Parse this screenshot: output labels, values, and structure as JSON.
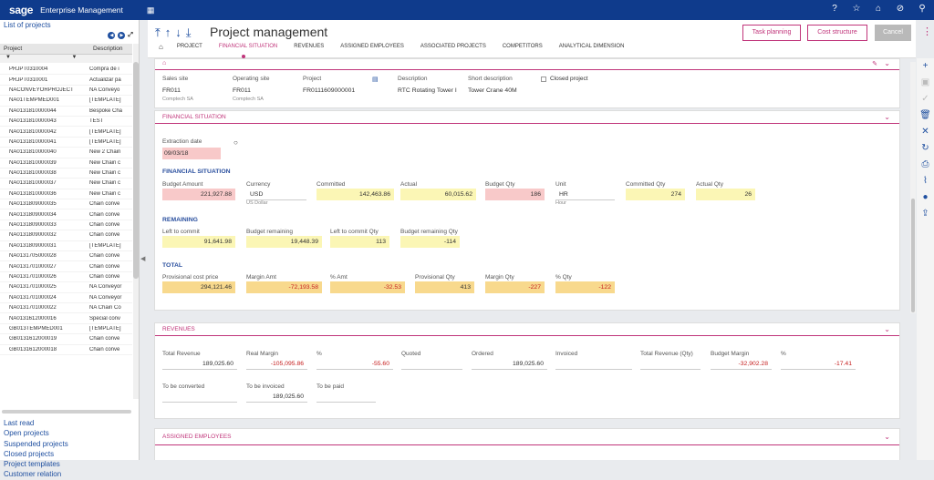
{
  "app": {
    "brand": "sage",
    "name": "Enterprise Management"
  },
  "left_panel": {
    "title": "List of projects",
    "headers": [
      "Project",
      "Description"
    ],
    "rows": [
      [
        "PRJPT0310004",
        "Compra de i"
      ],
      [
        "PRJPT0310001",
        "Actualizar pa"
      ],
      [
        "NACONVEYORPROJECT",
        "NA Conveyo"
      ],
      [
        "NA01TEMPMED001",
        "[TEMPLATE]"
      ],
      [
        "NA0131810000044",
        "Bespoke Cha"
      ],
      [
        "NA0131810000043",
        "TEST"
      ],
      [
        "NA0131810000042",
        "[TEMPLATE]"
      ],
      [
        "NA0131810000041",
        "[TEMPLATE]"
      ],
      [
        "NA0131810000040",
        "New 2 Chain"
      ],
      [
        "NA0131810000039",
        "New Chain c"
      ],
      [
        "NA0131810000038",
        "New Chain c"
      ],
      [
        "NA0131810000037",
        "New Chain c"
      ],
      [
        "NA0131810000036",
        "New Chain c"
      ],
      [
        "NA0131809000035",
        "Chain conve"
      ],
      [
        "NA0131809000034",
        "Chain conve"
      ],
      [
        "NA0131809000033",
        "Chain conve"
      ],
      [
        "NA0131809000032",
        "Chain conve"
      ],
      [
        "NA0131809000031",
        "[TEMPLATE]"
      ],
      [
        "NA0131705000028",
        "Chain conve"
      ],
      [
        "NA0131701000027",
        "Chain conve"
      ],
      [
        "NA0131701000026",
        "Chain conve"
      ],
      [
        "NA0131701000025",
        "NA Conveyor"
      ],
      [
        "NA0131701000024",
        "NA Conveyor"
      ],
      [
        "NA0131701000022",
        "NA Chain Co"
      ],
      [
        "NA0131612000016",
        "Special conv"
      ],
      [
        "GB013TEMPMED001",
        "[TEMPLATE]"
      ],
      [
        "GB0131612000019",
        "Chain conve"
      ],
      [
        "GB0131612000018",
        "Chain conve"
      ]
    ],
    "links": [
      "Last read",
      "Open projects",
      "Suspended projects",
      "Closed projects",
      "Project templates",
      "Customer relation"
    ]
  },
  "header": {
    "title": "Project management",
    "tabs": [
      "PROJECT",
      "FINANCIAL SITUATION",
      "REVENUES",
      "ASSIGNED EMPLOYEES",
      "ASSOCIATED PROJECTS",
      "COMPETITORS",
      "ANALYTICAL DIMENSION"
    ],
    "buttons": {
      "task": "Task planning",
      "cost": "Cost structure",
      "cancel": "Cancel"
    }
  },
  "project": {
    "sales_site_label": "Sales site",
    "sales_site": "FR011",
    "sales_site_sub": "Comptech SA",
    "op_site_label": "Operating site",
    "op_site": "FR011",
    "op_site_sub": "Comptech SA",
    "project_label": "Project",
    "project": "FR0111609000001",
    "desc_label": "Description",
    "desc": "RTC Rotating Tower I",
    "short_label": "Short description",
    "short": "Tower Crane 40M",
    "closed_label": "Closed project"
  },
  "financial": {
    "section": "FINANCIAL SITUATION",
    "extraction_label": "Extraction date",
    "extraction": "09/03/18",
    "sub1": "FINANCIAL SITUATION",
    "budget_amount_label": "Budget Amount",
    "budget_amount": "221,927.88",
    "currency_label": "Currency",
    "currency": "USD",
    "currency_sub": "US Dollar",
    "committed_label": "Committed",
    "committed": "142,463.86",
    "actual_label": "Actual",
    "actual": "60,015.62",
    "budget_qty_label": "Budget Qty",
    "budget_qty": "186",
    "unit_label": "Unit",
    "unit": "HR",
    "unit_sub": "Hour",
    "committed_qty_label": "Committed Qty",
    "committed_qty": "274",
    "actual_qty_label": "Actual Qty",
    "actual_qty": "26",
    "sub2": "REMAINING",
    "left_commit_label": "Left to commit",
    "left_commit": "91,641.98",
    "budget_rem_label": "Budget remaining",
    "budget_rem": "19,448.39",
    "left_commit_qty_label": "Left to commit Qty",
    "left_commit_qty": "113",
    "budget_rem_qty_label": "Budget remaining Qty",
    "budget_rem_qty": "-114",
    "sub3": "TOTAL",
    "prov_cost_label": "Provisional cost price",
    "prov_cost": "294,121.46",
    "margin_amt_label": "Margin Amt",
    "margin_amt": "-72,193.58",
    "pct_amt_label": "% Amt",
    "pct_amt": "-32.53",
    "prov_qty_label": "Provisional Qty",
    "prov_qty": "413",
    "margin_qty_label": "Margin Qty",
    "margin_qty": "-227",
    "pct_qty_label": "% Qty",
    "pct_qty": "-122"
  },
  "revenues": {
    "section": "REVENUES",
    "total_rev_label": "Total Revenue",
    "total_rev": "189,025.60",
    "real_margin_label": "Real Margin",
    "real_margin": "-105,095.86",
    "pct1_label": "%",
    "pct1": "-55.60",
    "quoted_label": "Quoted",
    "ordered_label": "Ordered",
    "ordered": "189,025.60",
    "invoiced_label": "Invoiced",
    "total_rev_qty_label": "Total Revenue (Qty)",
    "budget_margin_label": "Budget Margin",
    "budget_margin": "-32,902.28",
    "pct2_label": "%",
    "pct2": "-17.41",
    "to_convert_label": "To be converted",
    "to_invoice_label": "To be invoiced",
    "to_invoice": "189,025.60",
    "to_paid_label": "To be paid"
  },
  "assigned": {
    "section": "ASSIGNED EMPLOYEES"
  }
}
